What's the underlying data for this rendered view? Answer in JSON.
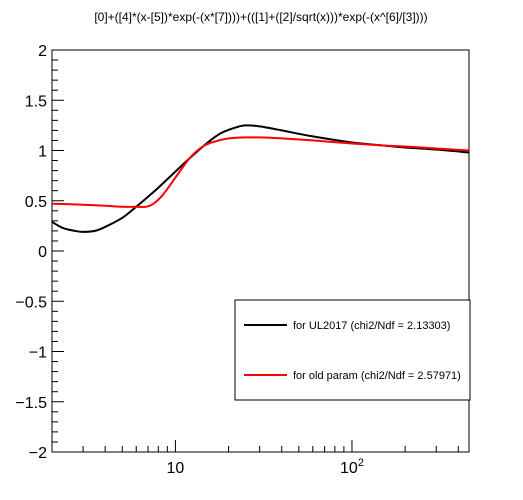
{
  "chart_data": {
    "type": "line",
    "title": "[0]+([4]*(x-[5])*exp(-(x*[7])))+(([1]+([2]/sqrt(x)))*exp(-(x^[6]/[3])))",
    "xlabel": "",
    "ylabel": "",
    "x_scale": "log",
    "xlim": [
      2,
      460
    ],
    "ylim": [
      -2,
      2
    ],
    "y_ticks": [
      {
        "value": 2,
        "label": "2"
      },
      {
        "value": 1.5,
        "label": "1.5"
      },
      {
        "value": 1,
        "label": "1"
      },
      {
        "value": 0.5,
        "label": "0.5"
      },
      {
        "value": 0,
        "label": "0"
      },
      {
        "value": -0.5,
        "label": "−0.5"
      },
      {
        "value": -1,
        "label": "−1"
      },
      {
        "value": -1.5,
        "label": "−1.5"
      },
      {
        "value": -2,
        "label": "−2"
      }
    ],
    "x_ticks": [
      {
        "value": 10,
        "label": "10"
      },
      {
        "value": 100,
        "label": "10",
        "exponent": "2"
      }
    ],
    "grid": false,
    "legend_position": "bottom-right",
    "series": [
      {
        "name": "for UL2017 (chi2/Ndf =  2.13303)",
        "color": "#000000",
        "x": [
          2,
          2.3,
          2.7,
          3.0,
          3.5,
          4.0,
          5.0,
          6.0,
          7.0,
          8.0,
          10,
          12,
          15,
          18,
          22,
          25,
          30,
          40,
          60,
          100,
          150,
          200,
          300,
          460
        ],
        "y": [
          0.29,
          0.23,
          0.2,
          0.19,
          0.2,
          0.24,
          0.33,
          0.44,
          0.54,
          0.63,
          0.79,
          0.92,
          1.07,
          1.17,
          1.23,
          1.25,
          1.24,
          1.2,
          1.14,
          1.08,
          1.05,
          1.03,
          1.01,
          0.98
        ]
      },
      {
        "name": "for old param (chi2/Ndf = 2.57971)",
        "color": "#ff0000",
        "x": [
          2,
          3,
          4,
          5,
          6,
          6.8,
          7.5,
          8.5,
          10,
          12,
          14,
          16,
          20,
          25,
          30,
          40,
          60,
          100,
          150,
          200,
          300,
          460
        ],
        "y": [
          0.47,
          0.46,
          0.45,
          0.44,
          0.44,
          0.44,
          0.47,
          0.56,
          0.73,
          0.92,
          1.03,
          1.08,
          1.12,
          1.13,
          1.13,
          1.12,
          1.1,
          1.07,
          1.05,
          1.04,
          1.02,
          1.0
        ]
      }
    ]
  }
}
